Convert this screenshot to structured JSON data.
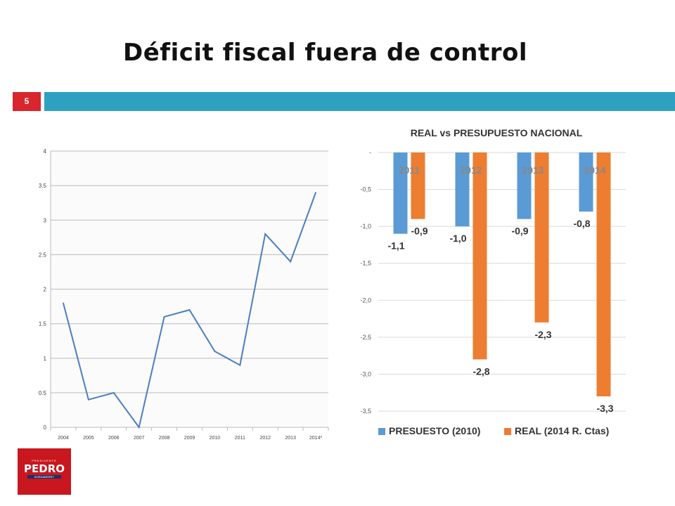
{
  "slide": {
    "title": "Déficit fiscal fuera de control",
    "number": "5"
  },
  "logo": {
    "top_text": "PRESIDENTE",
    "name": "PEDRO",
    "sub_text": "BORDABERRY"
  },
  "colors": {
    "accent_red": "#d9262c",
    "teal": "#2ea1c0",
    "line": "#4a7fbf",
    "presupuesto": "#5b9bd5",
    "real": "#ed7d31"
  },
  "chart_data": [
    {
      "type": "line",
      "title": "",
      "x": [
        "2004",
        "2005",
        "2006",
        "2007",
        "2008",
        "2009",
        "2010",
        "2011",
        "2012",
        "2013",
        "2014*"
      ],
      "y": [
        1.8,
        0.4,
        0.5,
        0.0,
        1.6,
        1.7,
        1.1,
        0.9,
        2.8,
        2.4,
        3.4
      ],
      "ylim": [
        0,
        4
      ],
      "yticks": [
        "0",
        "0.5",
        "1",
        "1.5",
        "2",
        "2.5",
        "3",
        "3.5",
        "4"
      ],
      "grid": true
    },
    {
      "type": "bar",
      "title": "REAL vs PRESUPUESTO NACIONAL",
      "categories": [
        "2011",
        "2012",
        "2013",
        "2014"
      ],
      "series": [
        {
          "name": "PRESUESTO (2010)",
          "values": [
            -1.1,
            -1.0,
            -0.9,
            -0.8
          ],
          "labels": [
            "-1,1",
            "-1,0",
            "-0,9",
            "-0,8"
          ]
        },
        {
          "name": "REAL  (2014 R. Ctas)",
          "values": [
            -0.9,
            -2.8,
            -2.3,
            -3.3
          ],
          "labels": [
            "-0,9",
            "-2,8",
            "-2,3",
            "-3,3"
          ]
        }
      ],
      "ylim": [
        -3.5,
        0
      ],
      "yticks": [
        "-",
        "-0,5",
        "-1,0",
        "-1,5",
        "-2,0",
        "-2,5",
        "-3,0",
        "-3,5"
      ],
      "legend": "bottom",
      "grid": true
    }
  ]
}
